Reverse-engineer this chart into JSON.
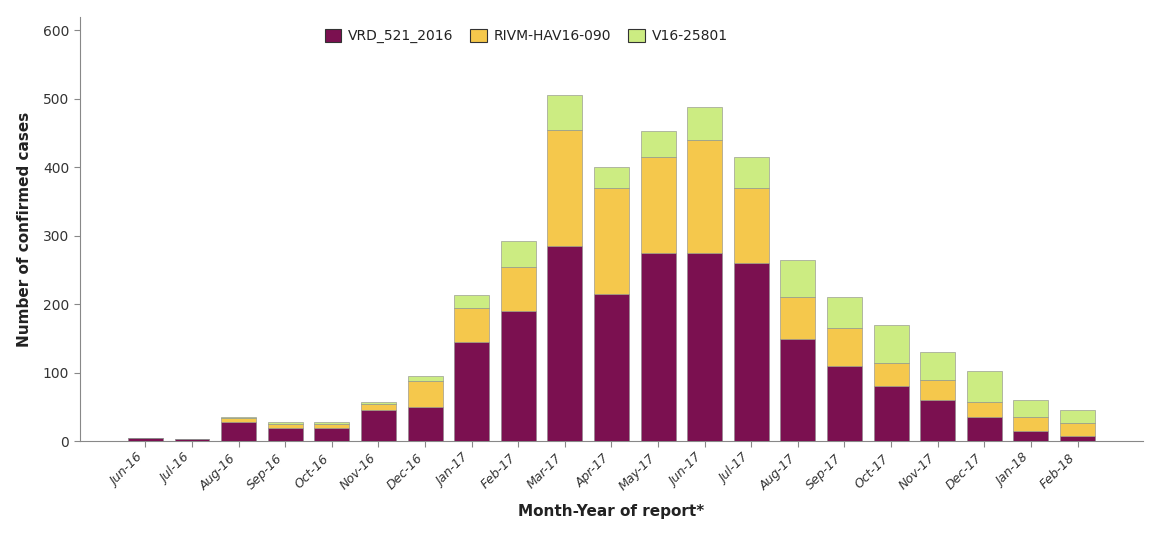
{
  "categories": [
    "Jun-16",
    "Jul-16",
    "Aug-16",
    "Sep-16",
    "Oct-16",
    "Nov-16",
    "Dec-16",
    "Jan-17",
    "Feb-17",
    "Mar-17",
    "Apr-17",
    "May-17",
    "Jun-17",
    "Jul-17",
    "Aug-17",
    "Sep-17",
    "Oct-17",
    "Nov-17",
    "Dec-17",
    "Jan-18",
    "Feb-18"
  ],
  "VRD_521_2016": [
    5,
    3,
    28,
    20,
    20,
    45,
    50,
    145,
    190,
    285,
    215,
    275,
    275,
    260,
    150,
    110,
    80,
    60,
    35,
    15,
    8
  ],
  "RIVM_HAV16_090": [
    0,
    0,
    6,
    5,
    5,
    10,
    38,
    50,
    65,
    170,
    155,
    140,
    165,
    110,
    60,
    55,
    35,
    30,
    22,
    20,
    18
  ],
  "V16_25801": [
    0,
    0,
    2,
    3,
    3,
    3,
    8,
    18,
    38,
    50,
    30,
    38,
    48,
    45,
    55,
    45,
    55,
    40,
    45,
    25,
    20
  ],
  "bar_color_1": "#7B1050",
  "bar_color_2": "#F5C84C",
  "bar_color_3": "#CCEC82",
  "bar_edgecolor": "#888888",
  "ylabel": "Number of confirmed cases",
  "xlabel": "Month-Year of report*",
  "ylim": [
    0,
    620
  ],
  "yticks": [
    0,
    100,
    200,
    300,
    400,
    500,
    600
  ],
  "legend_labels": [
    "VRD_521_2016",
    "RIVM-HAV16-090",
    "V16-25801"
  ],
  "axis_fontsize": 11,
  "tick_fontsize": 9,
  "legend_fontsize": 10,
  "background_color": "#ffffff"
}
